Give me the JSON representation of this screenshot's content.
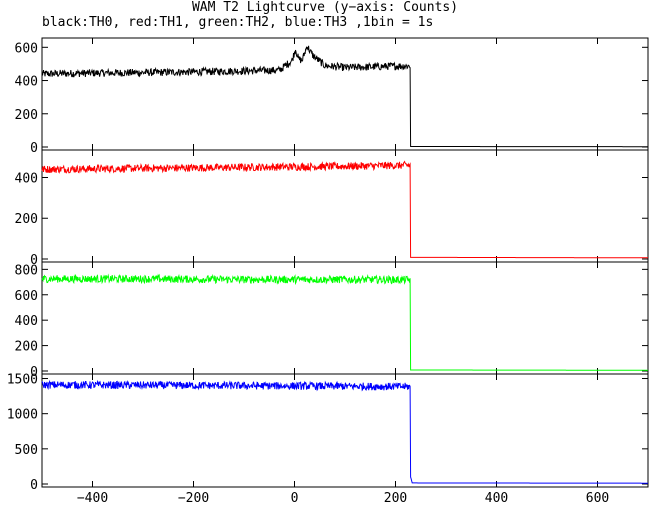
{
  "title": "WAM T2 Lightcurve (y−axis: Counts)",
  "subtitle": "black:TH0, red:TH1, green:TH2, blue:TH3 ,1bin = 1s",
  "chart_data": {
    "type": "line",
    "x_ticks": [
      -400,
      -200,
      0,
      200,
      400,
      600
    ],
    "xlim": [
      -500,
      700
    ],
    "panels": [
      {
        "series": "TH0",
        "color": "#000000",
        "ylim": [
          0,
          650
        ],
        "y_ticks": [
          0,
          200,
          400,
          600
        ],
        "points": [
          [
            -500,
            440
          ],
          [
            -400,
            445
          ],
          [
            -300,
            448
          ],
          [
            -200,
            452
          ],
          [
            -100,
            458
          ],
          [
            -30,
            462
          ],
          [
            -5,
            520
          ],
          [
            2,
            590
          ],
          [
            8,
            530
          ],
          [
            15,
            520
          ],
          [
            25,
            610
          ],
          [
            35,
            555
          ],
          [
            60,
            490
          ],
          [
            100,
            478
          ],
          [
            150,
            482
          ],
          [
            200,
            487
          ],
          [
            229,
            488
          ],
          [
            230,
            3
          ],
          [
            700,
            2
          ]
        ]
      },
      {
        "series": "TH1",
        "color": "#ff0000",
        "ylim": [
          0,
          530
        ],
        "y_ticks": [
          0,
          200,
          400
        ],
        "points": [
          [
            -500,
            440
          ],
          [
            -300,
            445
          ],
          [
            -100,
            450
          ],
          [
            100,
            455
          ],
          [
            229,
            460
          ],
          [
            230,
            8
          ],
          [
            700,
            6
          ]
        ]
      },
      {
        "series": "TH2",
        "color": "#00ff00",
        "ylim": [
          0,
          850
        ],
        "y_ticks": [
          0,
          200,
          400,
          600,
          800
        ],
        "points": [
          [
            -500,
            725
          ],
          [
            -300,
            725
          ],
          [
            -100,
            720
          ],
          [
            100,
            720
          ],
          [
            229,
            718
          ],
          [
            230,
            8
          ],
          [
            700,
            6
          ]
        ]
      },
      {
        "series": "TH3",
        "color": "#0000ff",
        "ylim": [
          0,
          1550
        ],
        "y_ticks": [
          0,
          500,
          1000,
          1500
        ],
        "points": [
          [
            -500,
            1410
          ],
          [
            -300,
            1405
          ],
          [
            -100,
            1398
          ],
          [
            100,
            1390
          ],
          [
            229,
            1385
          ],
          [
            230,
            100
          ],
          [
            233,
            15
          ],
          [
            700,
            12
          ]
        ]
      }
    ]
  }
}
